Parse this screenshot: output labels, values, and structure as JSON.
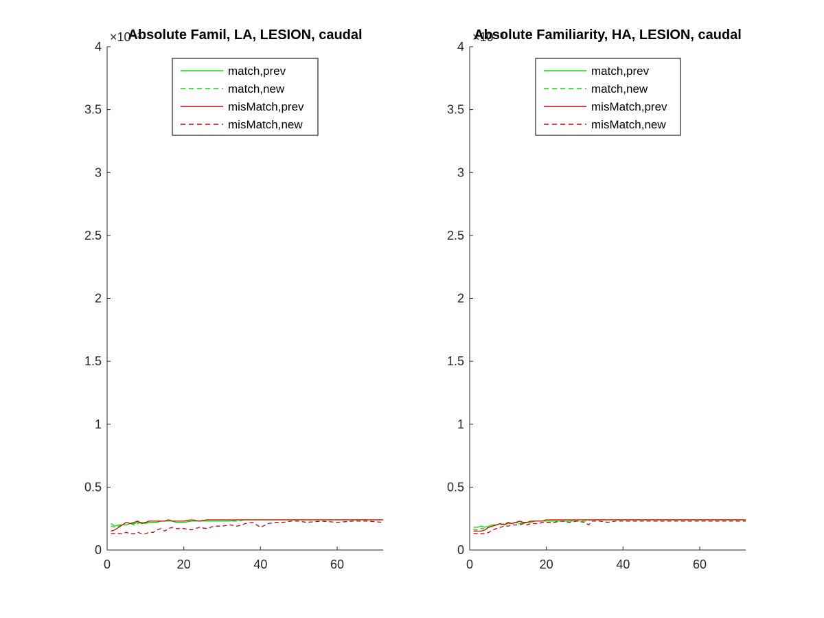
{
  "chart_data": [
    {
      "type": "line",
      "title": "Absolute Famil, LA, LESION, caudal",
      "exponent_label": "×10⁻³",
      "xlim": [
        0,
        72
      ],
      "ylim": [
        0,
        4
      ],
      "xticks": [
        0,
        20,
        40,
        60
      ],
      "yticks": [
        0,
        0.5,
        1,
        1.5,
        2,
        2.5,
        3,
        3.5,
        4
      ],
      "xtick_labels": [
        "0",
        "20",
        "40",
        "60"
      ],
      "ytick_labels": [
        "0",
        "0.5",
        "1",
        "1.5",
        "2",
        "2.5",
        "3",
        "3.5",
        "4"
      ],
      "legend_position": "top-center",
      "series": [
        {
          "name": "match,prev",
          "color": "#00e000",
          "dash": "solid",
          "x": [
            1,
            2,
            3,
            4,
            5,
            6,
            7,
            8,
            9,
            10,
            11,
            12,
            13,
            14,
            15,
            16,
            17,
            18,
            19,
            20,
            22,
            24,
            26,
            28,
            30,
            32,
            34,
            36,
            38,
            40,
            44,
            48,
            52,
            56,
            60,
            64,
            68,
            72
          ],
          "y": [
            0.21,
            0.19,
            0.2,
            0.2,
            0.2,
            0.21,
            0.21,
            0.22,
            0.22,
            0.21,
            0.22,
            0.22,
            0.22,
            0.23,
            0.23,
            0.23,
            0.23,
            0.22,
            0.22,
            0.22,
            0.23,
            0.23,
            0.23,
            0.23,
            0.23,
            0.23,
            0.24,
            0.24,
            0.24,
            0.24,
            0.24,
            0.24,
            0.24,
            0.24,
            0.24,
            0.24,
            0.24,
            0.24
          ]
        },
        {
          "name": "match,new",
          "color": "#00e000",
          "dash": "dashed",
          "x": [
            1,
            2,
            3,
            4,
            5,
            6,
            7,
            8,
            9,
            10,
            11,
            12,
            13,
            14,
            15,
            16,
            17,
            18,
            19,
            20,
            22,
            24,
            26,
            28,
            30,
            32,
            34,
            36,
            38,
            40,
            44,
            48,
            52,
            56,
            60,
            64,
            68,
            72
          ],
          "y": [
            0.19,
            0.18,
            0.19,
            0.2,
            0.2,
            0.21,
            0.2,
            0.21,
            0.22,
            0.22,
            0.22,
            0.22,
            0.22,
            0.23,
            0.23,
            0.23,
            0.23,
            0.22,
            0.22,
            0.22,
            0.23,
            0.23,
            0.23,
            0.23,
            0.23,
            0.23,
            0.23,
            0.24,
            0.24,
            0.24,
            0.24,
            0.24,
            0.24,
            0.24,
            0.24,
            0.24,
            0.24,
            0.24
          ]
        },
        {
          "name": "misMatch,prev",
          "color": "#d00000",
          "dash": "solid",
          "x": [
            1,
            2,
            3,
            4,
            5,
            6,
            7,
            8,
            9,
            10,
            11,
            12,
            13,
            14,
            15,
            16,
            17,
            18,
            19,
            20,
            22,
            24,
            26,
            28,
            30,
            32,
            34,
            36,
            38,
            40,
            44,
            48,
            52,
            56,
            60,
            64,
            68,
            72
          ],
          "y": [
            0.15,
            0.16,
            0.18,
            0.2,
            0.22,
            0.21,
            0.22,
            0.23,
            0.21,
            0.22,
            0.23,
            0.23,
            0.23,
            0.23,
            0.23,
            0.24,
            0.23,
            0.23,
            0.23,
            0.23,
            0.24,
            0.23,
            0.24,
            0.24,
            0.24,
            0.24,
            0.24,
            0.24,
            0.24,
            0.24,
            0.24,
            0.24,
            0.24,
            0.24,
            0.24,
            0.24,
            0.24,
            0.24
          ]
        },
        {
          "name": "misMatch,new",
          "color": "#d00000",
          "dash": "dashed",
          "x": [
            1,
            2,
            3,
            4,
            5,
            6,
            7,
            8,
            9,
            10,
            11,
            12,
            13,
            14,
            15,
            16,
            17,
            18,
            19,
            20,
            22,
            24,
            26,
            28,
            30,
            32,
            34,
            36,
            38,
            40,
            42,
            44,
            46,
            48,
            50,
            52,
            56,
            60,
            64,
            68,
            72
          ],
          "y": [
            0.13,
            0.13,
            0.13,
            0.13,
            0.14,
            0.13,
            0.13,
            0.14,
            0.13,
            0.13,
            0.14,
            0.14,
            0.16,
            0.17,
            0.15,
            0.17,
            0.18,
            0.17,
            0.17,
            0.17,
            0.16,
            0.18,
            0.17,
            0.19,
            0.19,
            0.2,
            0.19,
            0.21,
            0.22,
            0.18,
            0.21,
            0.22,
            0.22,
            0.23,
            0.23,
            0.22,
            0.23,
            0.22,
            0.23,
            0.23,
            0.22
          ]
        }
      ]
    },
    {
      "type": "line",
      "title": "Absolute Familiarity, HA, LESION, caudal",
      "exponent_label": "×10⁻³",
      "xlim": [
        0,
        72
      ],
      "ylim": [
        0,
        4
      ],
      "xticks": [
        0,
        20,
        40,
        60
      ],
      "yticks": [
        0,
        0.5,
        1,
        1.5,
        2,
        2.5,
        3,
        3.5,
        4
      ],
      "xtick_labels": [
        "0",
        "20",
        "40",
        "60"
      ],
      "ytick_labels": [
        "0",
        "0.5",
        "1",
        "1.5",
        "2",
        "2.5",
        "3",
        "3.5",
        "4"
      ],
      "legend_position": "top-center",
      "series": [
        {
          "name": "match,prev",
          "color": "#00e000",
          "dash": "solid",
          "x": [
            1,
            2,
            3,
            4,
            5,
            6,
            7,
            8,
            9,
            10,
            11,
            12,
            13,
            14,
            15,
            16,
            17,
            18,
            19,
            20,
            22,
            24,
            26,
            28,
            30,
            32,
            34,
            36,
            38,
            40,
            44,
            48,
            52,
            56,
            60,
            64,
            68,
            72
          ],
          "y": [
            0.18,
            0.18,
            0.19,
            0.18,
            0.19,
            0.2,
            0.2,
            0.21,
            0.2,
            0.21,
            0.21,
            0.22,
            0.21,
            0.21,
            0.22,
            0.22,
            0.23,
            0.23,
            0.23,
            0.23,
            0.23,
            0.23,
            0.23,
            0.24,
            0.24,
            0.24,
            0.24,
            0.24,
            0.24,
            0.24,
            0.24,
            0.24,
            0.24,
            0.24,
            0.24,
            0.24,
            0.24,
            0.24
          ]
        },
        {
          "name": "match,new",
          "color": "#00e000",
          "dash": "dashed",
          "x": [
            1,
            2,
            3,
            4,
            5,
            6,
            7,
            8,
            9,
            10,
            11,
            12,
            13,
            14,
            15,
            16,
            17,
            18,
            19,
            20,
            22,
            24,
            26,
            28,
            30,
            32,
            34,
            36,
            38,
            40,
            44,
            48,
            52,
            56,
            60,
            64,
            68,
            72
          ],
          "y": [
            0.16,
            0.16,
            0.17,
            0.17,
            0.18,
            0.19,
            0.2,
            0.2,
            0.21,
            0.21,
            0.21,
            0.22,
            0.22,
            0.22,
            0.22,
            0.23,
            0.23,
            0.23,
            0.23,
            0.23,
            0.23,
            0.23,
            0.23,
            0.23,
            0.23,
            0.24,
            0.24,
            0.24,
            0.24,
            0.24,
            0.24,
            0.24,
            0.24,
            0.24,
            0.24,
            0.24,
            0.24,
            0.24
          ]
        },
        {
          "name": "misMatch,prev",
          "color": "#d00000",
          "dash": "solid",
          "x": [
            1,
            2,
            3,
            4,
            5,
            6,
            7,
            8,
            9,
            10,
            11,
            12,
            13,
            14,
            15,
            16,
            17,
            18,
            19,
            20,
            22,
            24,
            26,
            28,
            30,
            32,
            34,
            36,
            38,
            40,
            44,
            48,
            52,
            56,
            60,
            64,
            68,
            72
          ],
          "y": [
            0.15,
            0.15,
            0.15,
            0.16,
            0.18,
            0.19,
            0.2,
            0.21,
            0.2,
            0.22,
            0.21,
            0.22,
            0.23,
            0.22,
            0.22,
            0.23,
            0.23,
            0.23,
            0.23,
            0.24,
            0.24,
            0.24,
            0.24,
            0.24,
            0.24,
            0.24,
            0.24,
            0.24,
            0.24,
            0.24,
            0.24,
            0.24,
            0.24,
            0.24,
            0.24,
            0.24,
            0.24,
            0.24
          ]
        },
        {
          "name": "misMatch,new",
          "color": "#d00000",
          "dash": "dashed",
          "x": [
            1,
            2,
            3,
            4,
            5,
            6,
            7,
            8,
            9,
            10,
            11,
            12,
            13,
            14,
            15,
            16,
            17,
            18,
            19,
            20,
            22,
            24,
            26,
            28,
            30,
            31,
            32,
            34,
            36,
            38,
            40,
            44,
            48,
            52,
            56,
            60,
            64,
            68,
            72
          ],
          "y": [
            0.13,
            0.13,
            0.13,
            0.13,
            0.14,
            0.16,
            0.17,
            0.18,
            0.19,
            0.19,
            0.2,
            0.2,
            0.2,
            0.21,
            0.2,
            0.21,
            0.21,
            0.21,
            0.22,
            0.22,
            0.22,
            0.23,
            0.22,
            0.23,
            0.22,
            0.2,
            0.23,
            0.23,
            0.22,
            0.23,
            0.23,
            0.23,
            0.23,
            0.23,
            0.23,
            0.23,
            0.23,
            0.23,
            0.23
          ]
        }
      ]
    }
  ]
}
